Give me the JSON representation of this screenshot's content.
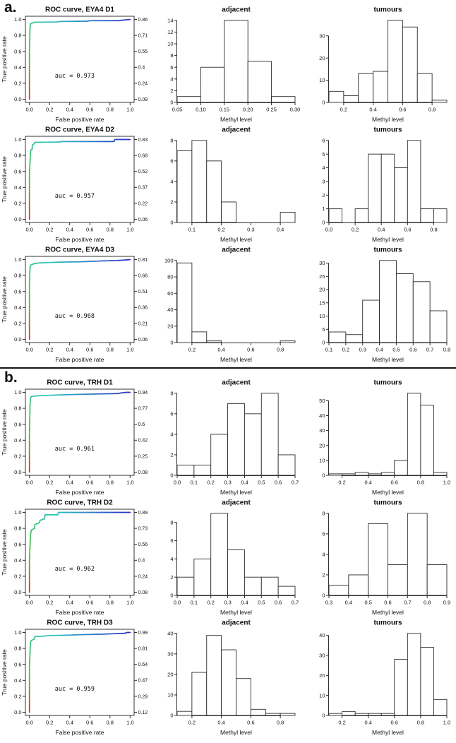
{
  "figure": {
    "panels": [
      {
        "label": "a."
      },
      {
        "label": "b."
      }
    ]
  },
  "style": {
    "roc_gradient": [
      [
        0,
        "#e02a1e"
      ],
      [
        0.22,
        "#4fc12e"
      ],
      [
        0.55,
        "#2cc5c0"
      ],
      [
        1,
        "#2b2fc9"
      ]
    ],
    "axis_color": "#2b2b2b",
    "bar_fill": "#ffffff",
    "bar_stroke": "#2b2b2b"
  },
  "chart_data": [
    {
      "id": "a1-roc",
      "panel": "a",
      "slot": "roc",
      "type": "line",
      "title": "ROC curve, EYA4 D1",
      "xlabel": "False positive rate",
      "ylabel": "True positive rate",
      "xlim": [
        0,
        1
      ],
      "ylim": [
        0,
        1
      ],
      "xticks": [
        "0.0",
        "0.2",
        "0.4",
        "0.6",
        "0.8",
        "1.0"
      ],
      "yticks": [
        "0.0",
        "0.2",
        "0.4",
        "0.6",
        "0.8",
        "1.0"
      ],
      "right_axis_labels": [
        "0.86",
        "0.71",
        "0.55",
        "0.4",
        "0.24",
        "0.09"
      ],
      "annotation": "auc = 0.973",
      "points": [
        [
          0,
          0
        ],
        [
          0,
          0.62
        ],
        [
          0.006,
          0.9
        ],
        [
          0.012,
          0.95
        ],
        [
          0.04,
          0.958
        ],
        [
          0.05,
          0.965
        ],
        [
          0.28,
          0.968
        ],
        [
          0.3,
          0.975
        ],
        [
          0.58,
          0.978
        ],
        [
          0.6,
          0.985
        ],
        [
          0.9,
          0.985
        ],
        [
          0.92,
          0.99
        ],
        [
          1,
          1
        ]
      ]
    },
    {
      "id": "a1-adjacent",
      "panel": "a",
      "slot": "adjacent",
      "type": "bar",
      "title": "adjacent",
      "xlabel": "Methyl level",
      "ylabel": "",
      "bin_start": 0.05,
      "bin_width": 0.05,
      "counts": [
        1,
        6,
        14,
        7,
        1
      ],
      "xticks": [
        "0.05",
        "0.10",
        "0.15",
        "0.20",
        "0.25",
        "0.30"
      ],
      "yticks": [
        "0",
        "2",
        "4",
        "6",
        "8",
        "10",
        "12",
        "14"
      ]
    },
    {
      "id": "a1-tumours",
      "panel": "a",
      "slot": "tumours",
      "type": "bar",
      "title": "tumours",
      "xlabel": "Methyl level",
      "ylabel": "",
      "bin_start": 0.1,
      "bin_width": 0.1,
      "counts": [
        5,
        3,
        13,
        14,
        37,
        34,
        13,
        1
      ],
      "xticks": [
        "0.2",
        "0.4",
        "0.6",
        "0.8"
      ],
      "yticks": [
        "0",
        "10",
        "20",
        "30"
      ]
    },
    {
      "id": "a2-roc",
      "panel": "a",
      "slot": "roc",
      "type": "line",
      "title": "ROC curve, EYA4 D2",
      "xlabel": "False positive rate",
      "ylabel": "True positive rate",
      "xlim": [
        0,
        1
      ],
      "ylim": [
        0,
        1
      ],
      "xticks": [
        "0.0",
        "0.2",
        "0.4",
        "0.6",
        "0.8",
        "1.0"
      ],
      "yticks": [
        "0.0",
        "0.2",
        "0.4",
        "0.6",
        "0.8",
        "1.0"
      ],
      "right_axis_labels": [
        "0.83",
        "0.68",
        "0.52",
        "0.37",
        "0.22",
        "0.06"
      ],
      "annotation": "auc = 0.957",
      "points": [
        [
          0,
          0
        ],
        [
          0,
          0.56
        ],
        [
          0.01,
          0.84
        ],
        [
          0.015,
          0.87
        ],
        [
          0.025,
          0.87
        ],
        [
          0.03,
          0.93
        ],
        [
          0.05,
          0.95
        ],
        [
          0.055,
          0.965
        ],
        [
          0.3,
          0.968
        ],
        [
          0.32,
          0.975
        ],
        [
          0.84,
          0.975
        ],
        [
          0.85,
          1
        ],
        [
          1,
          1
        ]
      ]
    },
    {
      "id": "a2-adjacent",
      "panel": "a",
      "slot": "adjacent",
      "type": "bar",
      "title": "adjacent",
      "xlabel": "Methyl level",
      "ylabel": "",
      "bin_start": 0.05,
      "bin_width": 0.05,
      "counts": [
        7,
        8,
        6,
        2,
        0,
        0,
        0,
        1
      ],
      "xticks": [
        "0.1",
        "0.2",
        "0.3",
        "0.4"
      ],
      "yticks": [
        "0",
        "2",
        "4",
        "6",
        "8"
      ]
    },
    {
      "id": "a2-tumours",
      "panel": "a",
      "slot": "tumours",
      "type": "bar",
      "title": "tumours",
      "xlabel": "Methyl level",
      "ylabel": "",
      "bin_start": 0.0,
      "bin_width": 0.1,
      "counts": [
        1,
        0,
        1,
        5,
        5,
        4,
        6,
        1,
        1
      ],
      "xticks": [
        "0.0",
        "0.2",
        "0.4",
        "0.6",
        "0.8"
      ],
      "yticks": [
        "0",
        "1",
        "2",
        "3",
        "4",
        "5",
        "6"
      ]
    },
    {
      "id": "a3-roc",
      "panel": "a",
      "slot": "roc",
      "type": "line",
      "title": "ROC curve, EYA4 D3",
      "xlabel": "False positive rate",
      "ylabel": "True positive rate",
      "xlim": [
        0,
        1
      ],
      "ylim": [
        0,
        1
      ],
      "xticks": [
        "0.0",
        "0.2",
        "0.4",
        "0.6",
        "0.8",
        "1.0"
      ],
      "yticks": [
        "0.0",
        "0.2",
        "0.4",
        "0.6",
        "0.8",
        "1.0"
      ],
      "right_axis_labels": [
        "0.81",
        "0.66",
        "0.51",
        "0.36",
        "0.21",
        "0.06"
      ],
      "annotation": "auc = 0.968",
      "points": [
        [
          0,
          0
        ],
        [
          0,
          0.7
        ],
        [
          0.006,
          0.9
        ],
        [
          0.012,
          0.93
        ],
        [
          0.05,
          0.95
        ],
        [
          0.1,
          0.958
        ],
        [
          0.3,
          0.968
        ],
        [
          0.5,
          0.972
        ],
        [
          0.7,
          0.982
        ],
        [
          0.9,
          0.99
        ],
        [
          1,
          1
        ]
      ]
    },
    {
      "id": "a3-adjacent",
      "panel": "a",
      "slot": "adjacent",
      "type": "bar",
      "title": "adjacent",
      "xlabel": "Methyl level",
      "ylabel": "",
      "bin_start": 0.1,
      "bin_width": 0.1,
      "counts": [
        97,
        13,
        2,
        0,
        0,
        0,
        0,
        2
      ],
      "xticks": [
        "0.2",
        "0.4",
        "0.6",
        "0.8"
      ],
      "yticks": [
        "0",
        "20",
        "40",
        "60",
        "80",
        "100"
      ]
    },
    {
      "id": "a3-tumours",
      "panel": "a",
      "slot": "tumours",
      "type": "bar",
      "title": "tumours",
      "xlabel": "Methyl level",
      "ylabel": "",
      "bin_start": 0.1,
      "bin_width": 0.1,
      "counts": [
        4,
        3,
        16,
        31,
        26,
        23,
        12
      ],
      "xticks": [
        "0.1",
        "0.2",
        "0.3",
        "0.4",
        "0.5",
        "0.6",
        "0.7",
        "0.8"
      ],
      "yticks": [
        "0",
        "5",
        "10",
        "15",
        "20",
        "25",
        "30"
      ]
    },
    {
      "id": "b1-roc",
      "panel": "b",
      "slot": "roc",
      "type": "line",
      "title": "ROC curve, TRH D1",
      "xlabel": "False positive rate",
      "ylabel": "True positive rate",
      "xlim": [
        0,
        1
      ],
      "ylim": [
        0,
        1
      ],
      "xticks": [
        "0.0",
        "0.2",
        "0.4",
        "0.6",
        "0.8",
        "1.0"
      ],
      "yticks": [
        "0.0",
        "0.2",
        "0.4",
        "0.6",
        "0.8",
        "1.0"
      ],
      "right_axis_labels": [
        "0.94",
        "0.77",
        "0.6",
        "0.42",
        "0.25",
        "0.08"
      ],
      "annotation": "auc = 0.961",
      "points": [
        [
          0,
          0
        ],
        [
          0,
          0.46
        ],
        [
          0.006,
          0.85
        ],
        [
          0.012,
          0.93
        ],
        [
          0.02,
          0.95
        ],
        [
          0.1,
          0.958
        ],
        [
          0.3,
          0.968
        ],
        [
          0.5,
          0.975
        ],
        [
          0.88,
          0.985
        ],
        [
          0.9,
          0.99
        ],
        [
          0.96,
          1
        ],
        [
          1,
          1
        ]
      ]
    },
    {
      "id": "b1-adjacent",
      "panel": "b",
      "slot": "adjacent",
      "type": "bar",
      "title": "adjacent",
      "xlabel": "Methyl level",
      "ylabel": "",
      "bin_start": 0.0,
      "bin_width": 0.1,
      "counts": [
        1,
        1,
        4,
        7,
        6,
        8,
        2
      ],
      "xticks": [
        "0.0",
        "0.1",
        "0.2",
        "0.3",
        "0.4",
        "0.5",
        "0.6",
        "0.7"
      ],
      "yticks": [
        "0",
        "2",
        "4",
        "6",
        "8"
      ]
    },
    {
      "id": "b1-tumours",
      "panel": "b",
      "slot": "tumours",
      "type": "bar",
      "title": "tumours",
      "xlabel": "Methyl level",
      "ylabel": "",
      "bin_start": 0.1,
      "bin_width": 0.1,
      "counts": [
        1,
        1,
        2,
        1,
        2,
        10,
        55,
        47,
        2
      ],
      "xticks": [
        "0.2",
        "0.4",
        "0.6",
        "0.8",
        "1.0"
      ],
      "yticks": [
        "0",
        "10",
        "20",
        "30",
        "40",
        "50"
      ]
    },
    {
      "id": "b2-roc",
      "panel": "b",
      "slot": "roc",
      "type": "line",
      "title": "ROC curve, TRH D2",
      "xlabel": "False positive rate",
      "ylabel": "True positive rate",
      "xlim": [
        0,
        1
      ],
      "ylim": [
        0,
        1
      ],
      "xticks": [
        "0.0",
        "0.2",
        "0.4",
        "0.6",
        "0.8",
        "1.0"
      ],
      "yticks": [
        "0.0",
        "0.2",
        "0.4",
        "0.6",
        "0.8",
        "1.0"
      ],
      "right_axis_labels": [
        "0.89",
        "0.73",
        "0.56",
        "0.4",
        "0.24",
        "0.08"
      ],
      "annotation": "auc = 0.962",
      "points": [
        [
          0,
          0
        ],
        [
          0,
          0.4
        ],
        [
          0.01,
          0.72
        ],
        [
          0.02,
          0.78
        ],
        [
          0.05,
          0.8
        ],
        [
          0.055,
          0.85
        ],
        [
          0.1,
          0.87
        ],
        [
          0.105,
          0.9
        ],
        [
          0.15,
          0.92
        ],
        [
          0.155,
          0.97
        ],
        [
          0.28,
          0.97
        ],
        [
          0.29,
          1
        ],
        [
          1,
          1
        ]
      ]
    },
    {
      "id": "b2-adjacent",
      "panel": "b",
      "slot": "adjacent",
      "type": "bar",
      "title": "adjacent",
      "xlabel": "Methyl level",
      "ylabel": "",
      "bin_start": 0.0,
      "bin_width": 0.1,
      "counts": [
        2,
        4,
        9,
        5,
        2,
        2,
        1
      ],
      "xticks": [
        "0.0",
        "0.1",
        "0.2",
        "0.3",
        "0.4",
        "0.5",
        "0.6",
        "0.7"
      ],
      "yticks": [
        "0",
        "2",
        "4",
        "6",
        "8"
      ]
    },
    {
      "id": "b2-tumours",
      "panel": "b",
      "slot": "tumours",
      "type": "bar",
      "title": "tumours",
      "xlabel": "Methyl level",
      "ylabel": "",
      "bin_start": 0.3,
      "bin_width": 0.1,
      "counts": [
        1,
        2,
        7,
        3,
        8,
        3
      ],
      "xticks": [
        "0.3",
        "0.4",
        "0.5",
        "0.6",
        "0.7",
        "0.8",
        "0.9"
      ],
      "yticks": [
        "0",
        "2",
        "4",
        "6",
        "8"
      ]
    },
    {
      "id": "b3-roc",
      "panel": "b",
      "slot": "roc",
      "type": "line",
      "title": "ROC curve, TRH D3",
      "xlabel": "False positive rate",
      "ylabel": "True positive rate",
      "xlim": [
        0,
        1
      ],
      "ylim": [
        0,
        1
      ],
      "xticks": [
        "0.0",
        "0.2",
        "0.4",
        "0.6",
        "0.8",
        "1.0"
      ],
      "yticks": [
        "0.0",
        "0.2",
        "0.4",
        "0.6",
        "0.8",
        "1.0"
      ],
      "right_axis_labels": [
        "0.99",
        "0.81",
        "0.64",
        "0.47",
        "0.29",
        "0.12"
      ],
      "annotation": "auc = 0.959",
      "points": [
        [
          0,
          0
        ],
        [
          0,
          0.56
        ],
        [
          0.01,
          0.88
        ],
        [
          0.02,
          0.9
        ],
        [
          0.05,
          0.92
        ],
        [
          0.055,
          0.95
        ],
        [
          0.15,
          0.955
        ],
        [
          0.2,
          0.962
        ],
        [
          0.35,
          0.965
        ],
        [
          0.5,
          0.972
        ],
        [
          0.75,
          0.98
        ],
        [
          0.95,
          0.99
        ],
        [
          0.97,
          1
        ],
        [
          1,
          1
        ]
      ]
    },
    {
      "id": "b3-adjacent",
      "panel": "b",
      "slot": "adjacent",
      "type": "bar",
      "title": "adjacent",
      "xlabel": "Methyl level",
      "ylabel": "",
      "bin_start": 0.1,
      "bin_width": 0.1,
      "counts": [
        2,
        21,
        39,
        32,
        18,
        3,
        1,
        1
      ],
      "xticks": [
        "0.2",
        "0.4",
        "0.6",
        "0.8"
      ],
      "yticks": [
        "0",
        "10",
        "20",
        "30",
        "40"
      ]
    },
    {
      "id": "b3-tumours",
      "panel": "b",
      "slot": "tumours",
      "type": "bar",
      "title": "tumours",
      "xlabel": "Methyl level",
      "ylabel": "",
      "bin_start": 0.1,
      "bin_width": 0.1,
      "counts": [
        1,
        2,
        1,
        1,
        1,
        28,
        41,
        34,
        8
      ],
      "xticks": [
        "0.2",
        "0.4",
        "0.6",
        "0.8",
        "1.0"
      ],
      "yticks": [
        "0",
        "10",
        "20",
        "30",
        "40"
      ]
    }
  ]
}
